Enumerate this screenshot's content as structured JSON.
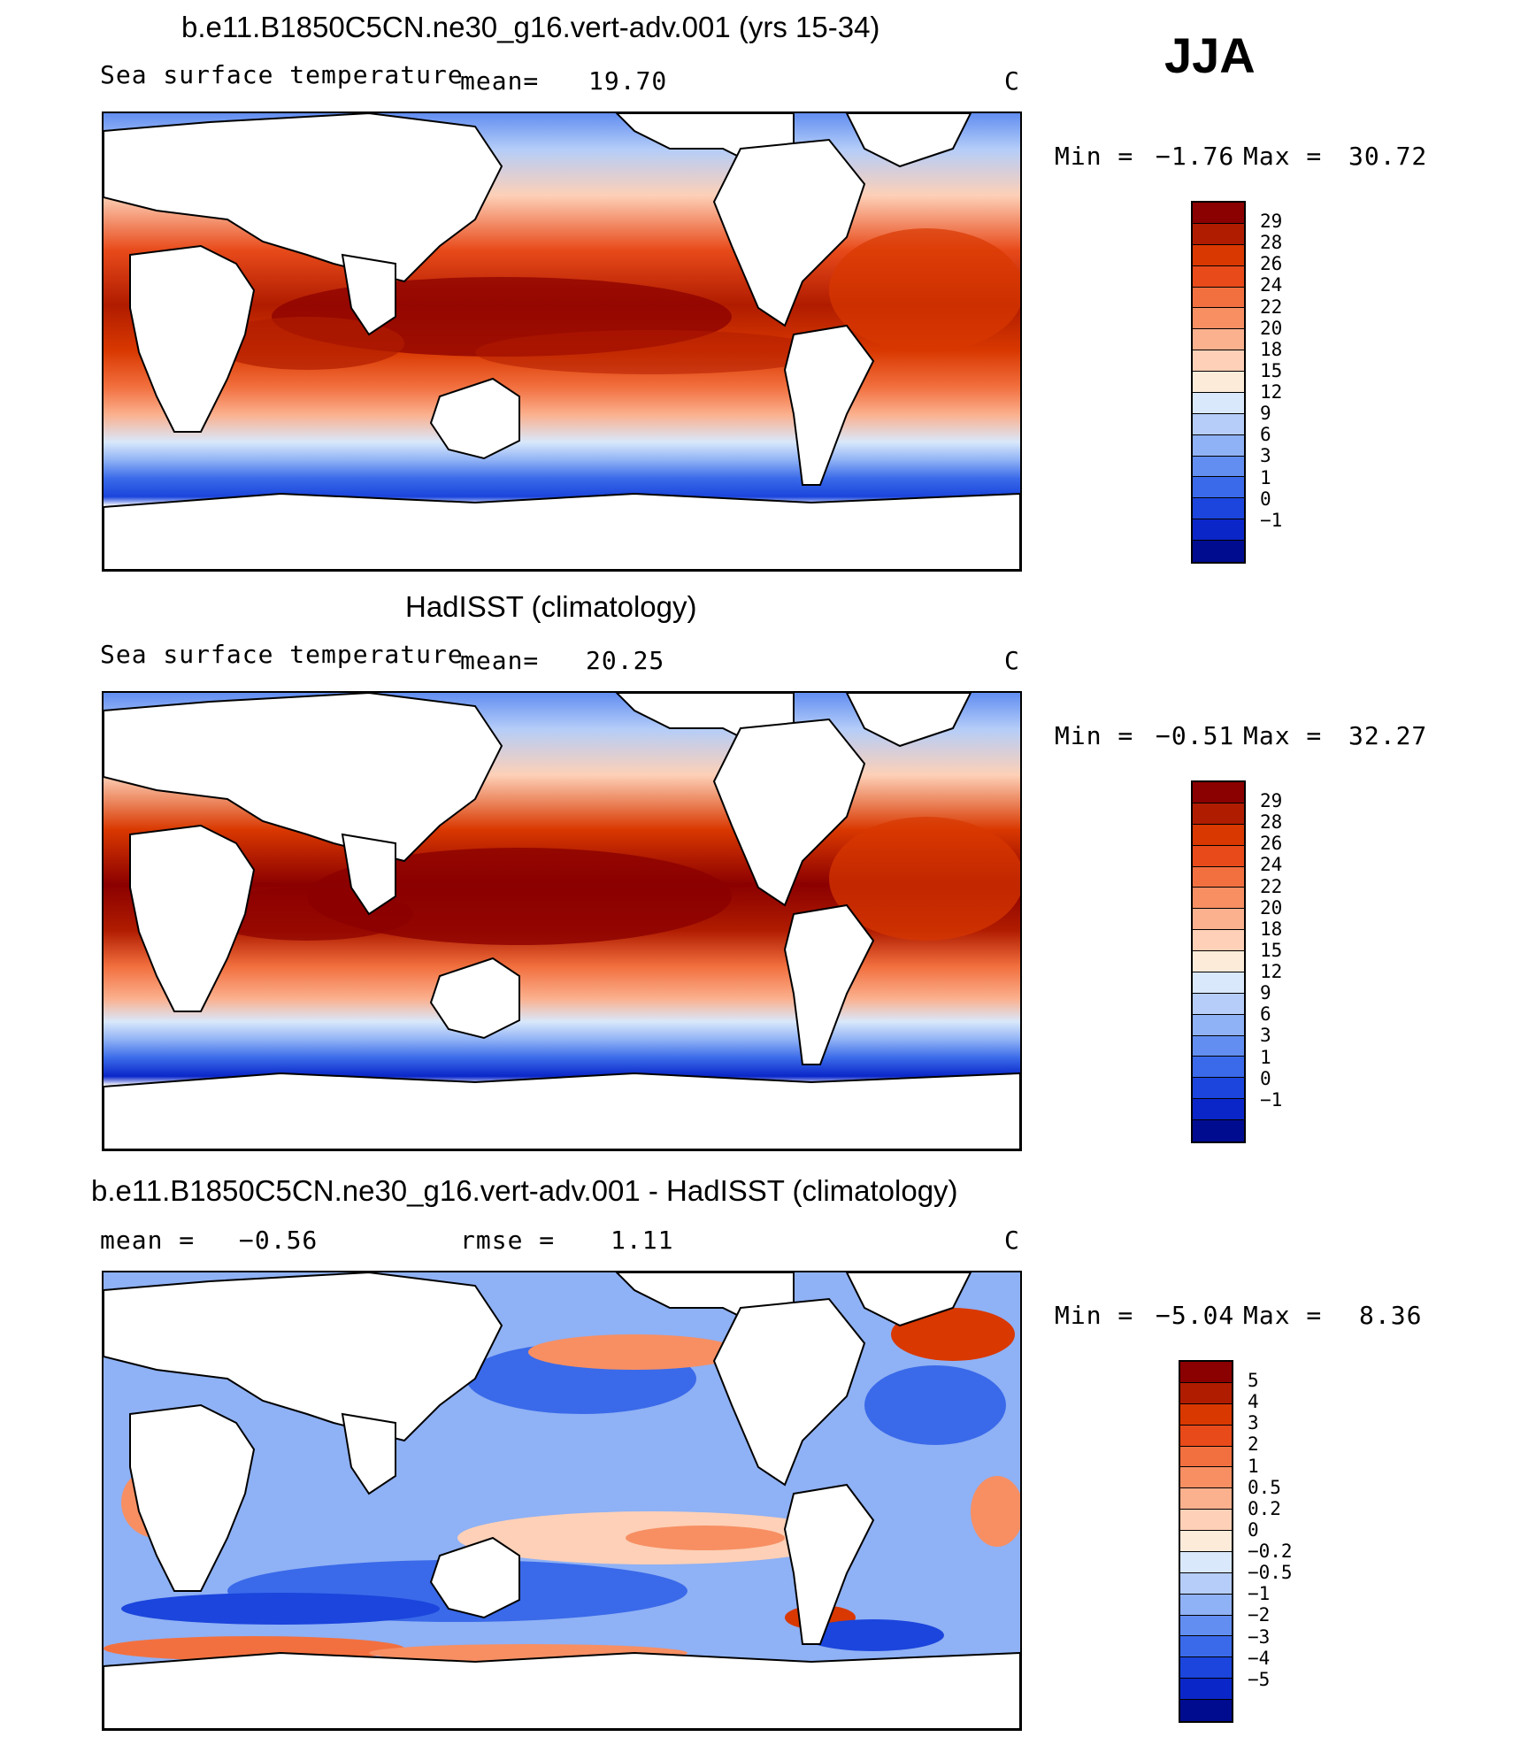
{
  "season": "JJA",
  "panels": [
    {
      "title": "b.e11.B1850C5CN.ne30_g16.vert-adv.001 (yrs 15-34)",
      "variable": "Sea surface temperature",
      "stat1_label": "mean=",
      "stat1_value": "19.70",
      "stat2_label": "",
      "stat2_value": "",
      "units": "C",
      "min_label": "Min =",
      "min_value": "−1.76",
      "max_label": "Max =",
      "max_value": "30.72",
      "levels": [
        "29",
        "28",
        "26",
        "24",
        "22",
        "20",
        "18",
        "15",
        "12",
        "9",
        "6",
        "3",
        "1",
        "0",
        "−1"
      ],
      "colors": [
        "#8b0000",
        "#b01c00",
        "#d93800",
        "#e84a1a",
        "#f2703f",
        "#f78f63",
        "#fbb08e",
        "#fdd0b7",
        "#fdebd9",
        "#d9e8fb",
        "#b5cdf8",
        "#8fb1f5",
        "#628ef1",
        "#3a6ae9",
        "#1b45dc",
        "#0a26c8",
        "#000c8f"
      ]
    },
    {
      "title": "HadISST (climatology)",
      "variable": "Sea surface temperature",
      "stat1_label": "mean=",
      "stat1_value": "20.25",
      "stat2_label": "",
      "stat2_value": "",
      "units": "C",
      "min_label": "Min =",
      "min_value": "−0.51",
      "max_label": "Max =",
      "max_value": "32.27",
      "levels": [
        "29",
        "28",
        "26",
        "24",
        "22",
        "20",
        "18",
        "15",
        "12",
        "9",
        "6",
        "3",
        "1",
        "0",
        "−1"
      ],
      "colors": [
        "#8b0000",
        "#b01c00",
        "#d93800",
        "#e84a1a",
        "#f2703f",
        "#f78f63",
        "#fbb08e",
        "#fdd0b7",
        "#fdebd9",
        "#d9e8fb",
        "#b5cdf8",
        "#8fb1f5",
        "#628ef1",
        "#3a6ae9",
        "#1b45dc",
        "#0a26c8",
        "#000c8f"
      ]
    },
    {
      "title": "b.e11.B1850C5CN.ne30_g16.vert-adv.001 - HadISST (climatology)",
      "variable": "",
      "stat1_label": "mean =",
      "stat1_value": "−0.56",
      "stat2_label": "rmse =",
      "stat2_value": "1.11",
      "units": "C",
      "min_label": "Min =",
      "min_value": "−5.04",
      "max_label": "Max =",
      "max_value": "8.36",
      "levels": [
        "5",
        "4",
        "3",
        "2",
        "1",
        "0.5",
        "0.2",
        "0",
        "−0.2",
        "−0.5",
        "−1",
        "−2",
        "−3",
        "−4",
        "−5"
      ],
      "colors": [
        "#8b0000",
        "#b01c00",
        "#d93800",
        "#e84a1a",
        "#f2703f",
        "#f78f63",
        "#fbb08e",
        "#fdd0b7",
        "#fdebd9",
        "#d9e8fb",
        "#b5cdf8",
        "#8fb1f5",
        "#628ef1",
        "#3a6ae9",
        "#1b45dc",
        "#0a26c8",
        "#000c8f"
      ]
    }
  ]
}
